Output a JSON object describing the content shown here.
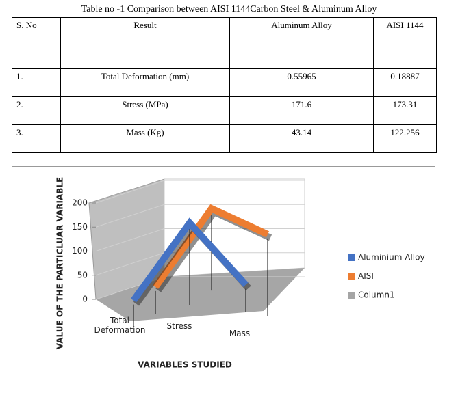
{
  "caption": "Table no -1 Comparison between AISI 1144Carbon Steel & Aluminum Alloy",
  "table": {
    "header": [
      "S. No",
      "Result",
      "Aluminum Alloy",
      "AISI 1144"
    ],
    "rows": [
      [
        "1.",
        "Total Deformation (mm)",
        "0.55965",
        "0.18887"
      ],
      [
        "2.",
        "Stress (MPa)",
        "171.6",
        "173.31"
      ],
      [
        "3.",
        "Mass (Kg)",
        "43.14",
        "122.256"
      ]
    ]
  },
  "chart_data": {
    "type": "line",
    "y_label": "VALUE OF THE PARTICLUAR VARIABLE",
    "x_label": "VARIABLES STUDIED",
    "categories": [
      "Total Deformation",
      "Stress",
      "Mass"
    ],
    "series": [
      {
        "name": "Aluminium Alloy",
        "color": "#4472c4",
        "values": [
          0.55965,
          171.6,
          43.14
        ]
      },
      {
        "name": "AISI",
        "color": "#ed7d31",
        "values": [
          0.18887,
          173.31,
          122.256
        ]
      },
      {
        "name": "Column1",
        "color": "#a5a5a5",
        "values": [
          null,
          null,
          null
        ]
      }
    ],
    "ylim": [
      0,
      200
    ],
    "yticks": [
      0,
      50,
      100,
      150,
      200
    ],
    "grid": true,
    "legend": "right"
  }
}
